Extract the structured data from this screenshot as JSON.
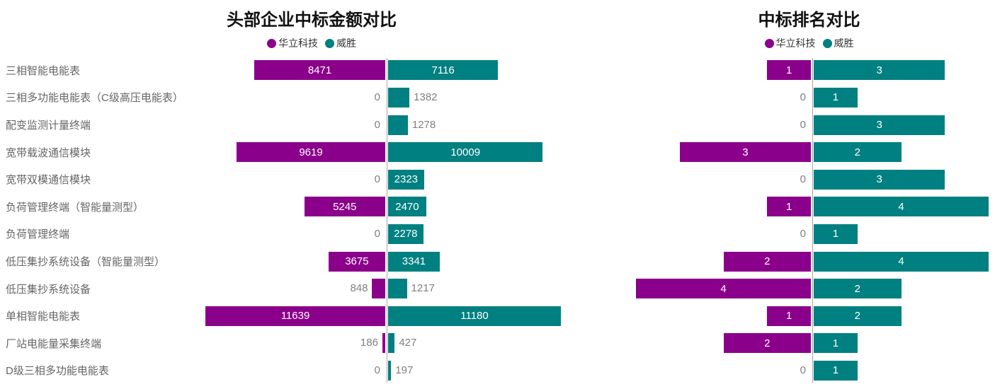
{
  "chart_data": [
    {
      "type": "bar",
      "orientation": "horizontal-diverging",
      "title": "头部企业中标金额对比",
      "legend_position": "top",
      "grid": false,
      "xlim": [
        0,
        11639
      ],
      "categories": [
        "三相智能电能表",
        "三相多功能电能表（C级高压电能表）",
        "配变监测计量终端",
        "宽带载波通信模块",
        "宽带双模通信模块",
        "负荷管理终端（智能量测型）",
        "负荷管理终端",
        "低压集抄系统设备（智能量测型）",
        "低压集抄系统设备",
        "单相智能电能表",
        "厂站电能量采集终端",
        "D级三相多功能电能表"
      ],
      "series": [
        {
          "name": "华立科技",
          "color": "#8B008B",
          "values": [
            8471,
            0,
            0,
            9619,
            0,
            5245,
            0,
            3675,
            848,
            11639,
            186,
            0
          ]
        },
        {
          "name": "威胜",
          "color": "#008080",
          "values": [
            7116,
            1382,
            1278,
            10009,
            2323,
            2470,
            2278,
            3341,
            1217,
            11180,
            427,
            197
          ]
        }
      ]
    },
    {
      "type": "bar",
      "orientation": "horizontal-diverging",
      "title": "中标排名对比",
      "legend_position": "top",
      "grid": false,
      "xlim": [
        0,
        4
      ],
      "categories": [
        "三相智能电能表",
        "三相多功能电能表（C级高压电能表）",
        "配变监测计量终端",
        "宽带载波通信模块",
        "宽带双模通信模块",
        "负荷管理终端（智能量测型）",
        "负荷管理终端",
        "低压集抄系统设备（智能量测型）",
        "低压集抄系统设备",
        "单相智能电能表",
        "厂站电能量采集终端",
        "D级三相多功能电能表"
      ],
      "series": [
        {
          "name": "华立科技",
          "color": "#8B008B",
          "values": [
            1,
            0,
            0,
            3,
            0,
            1,
            0,
            2,
            4,
            1,
            2,
            0
          ]
        },
        {
          "name": "威胜",
          "color": "#008080",
          "values": [
            3,
            1,
            3,
            2,
            3,
            4,
            1,
            4,
            2,
            2,
            1,
            1
          ]
        }
      ]
    }
  ],
  "colors": {
    "series_left": "#8B008B",
    "series_right": "#008080",
    "axis_line": "#a6a6a6",
    "category_label": "#666666",
    "outside_value_label": "#7f7f7f",
    "inside_value_label": "#ffffff",
    "title": "#111111"
  }
}
